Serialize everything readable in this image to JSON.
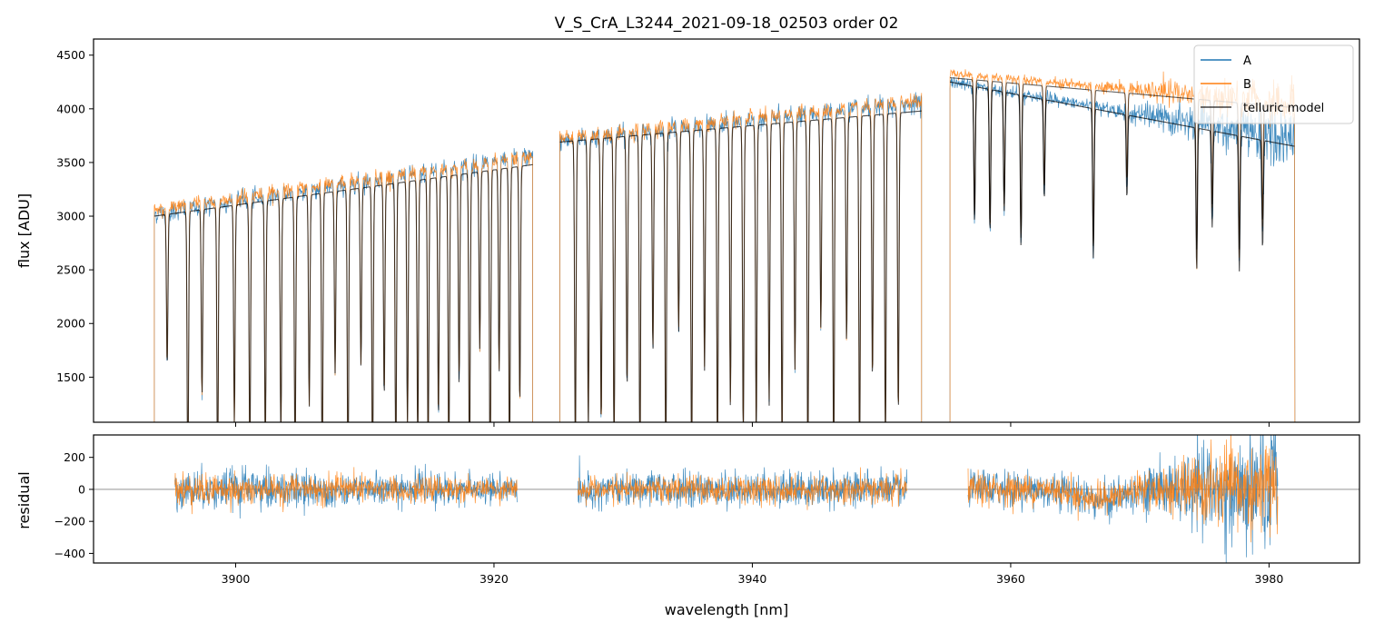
{
  "chart_data": [
    {
      "type": "line",
      "panel": "top",
      "title": "V_S_CrA_L3244_2021-09-18_02503  order 02",
      "xlabel": "",
      "ylabel": "flux [ADU]",
      "xlim": [
        3889,
        3987
      ],
      "ylim": [
        1080,
        4650
      ],
      "yticks": [
        1500,
        2000,
        2500,
        3000,
        3500,
        4000,
        4500
      ],
      "xticks": [
        3900,
        3920,
        3940,
        3960,
        3980
      ],
      "xtick_labels_visible": false,
      "legend_position": "upper right",
      "segments": [
        {
          "x": [
            3893.7,
            3923.0
          ],
          "a_level": [
            3020,
            3560
          ],
          "b_level": [
            3060,
            3560
          ],
          "model_level": [
            3000,
            3480
          ]
        },
        {
          "x": [
            3925.1,
            3953.1
          ],
          "a_level": [
            3700,
            4060
          ],
          "b_level": [
            3720,
            4080
          ],
          "model_level": [
            3690,
            3980
          ]
        },
        {
          "x": [
            3955.3,
            3982.0
          ],
          "a_level": [
            4250,
            3700
          ],
          "b_level": [
            4330,
            4050
          ],
          "model_level": [
            4250,
            3650
          ]
        }
      ],
      "series": [
        {
          "name": "A",
          "color": "#1f77b4"
        },
        {
          "name": "B",
          "color": "#ff7f0e"
        },
        {
          "name": "telluric model",
          "color": "#000000"
        }
      ],
      "telluric_lines_nm": [
        3894.7,
        3896.3,
        3897.4,
        3898.6,
        3899.9,
        3901.1,
        3902.3,
        3903.5,
        3904.6,
        3905.7,
        3906.7,
        3907.7,
        3908.7,
        3909.7,
        3910.6,
        3911.5,
        3912.4,
        3913.3,
        3914.1,
        3914.9,
        3915.7,
        3916.5,
        3917.3,
        3918.1,
        3918.9,
        3919.7,
        3920.4,
        3921.2,
        3922.0,
        3926.3,
        3927.3,
        3928.3,
        3929.3,
        3930.3,
        3931.3,
        3932.3,
        3933.3,
        3934.3,
        3935.3,
        3936.3,
        3937.3,
        3938.3,
        3939.3,
        3940.3,
        3941.3,
        3942.3,
        3943.3,
        3944.3,
        3945.3,
        3946.3,
        3947.3,
        3948.3,
        3949.3,
        3950.3,
        3951.3,
        3957.2,
        3958.4,
        3959.5,
        3960.8,
        3962.6,
        3966.4,
        3969.0,
        3974.4,
        3975.6,
        3977.7,
        3979.5
      ]
    },
    {
      "type": "line",
      "panel": "bottom",
      "xlabel": "wavelength [nm]",
      "ylabel": "residual",
      "xlim": [
        3889,
        3987
      ],
      "ylim": [
        -460,
        340
      ],
      "yticks": [
        -400,
        -200,
        0,
        200
      ],
      "xticks": [
        3900,
        3920,
        3940,
        3960,
        3980
      ],
      "zero_line": true,
      "segments": [
        {
          "x": [
            3895.3,
            3921.8
          ],
          "noise_std": [
            60,
            40
          ]
        },
        {
          "x": [
            3926.5,
            3952.0
          ],
          "noise_std": [
            45,
            55
          ]
        },
        {
          "x": [
            3956.7,
            3980.7
          ],
          "noise_std": [
            55,
            200
          ]
        }
      ],
      "series": [
        {
          "name": "A",
          "color": "#1f77b4"
        },
        {
          "name": "B",
          "color": "#ff7f0e"
        }
      ]
    }
  ]
}
